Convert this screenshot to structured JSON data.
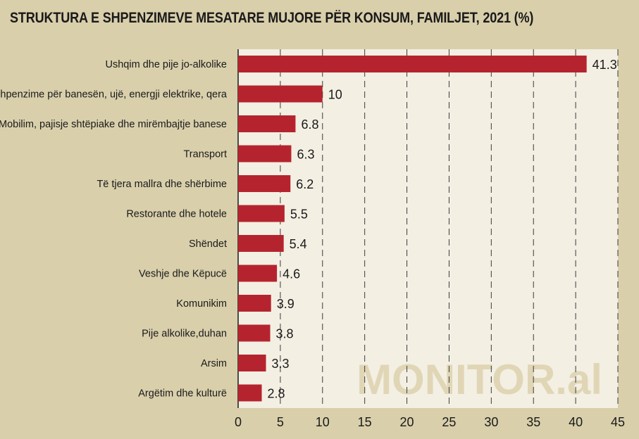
{
  "chart_data": {
    "type": "bar",
    "orientation": "horizontal",
    "title": "STRUKTURA E SHPENZIMEVE MESATARE MUJORE PËR KONSUM, FAMILJET, 2021 (%)",
    "categories": [
      "Ushqim dhe pije jo-alkolike",
      "Shpenzime për banesën, ujë, energji elektrike, qera",
      "Mobilim, pajisje shtëpiake dhe mirëmbajtje banese",
      "Transport",
      "Të tjera mallra dhe shërbime",
      "Restorante dhe hotele",
      "Shëndet",
      "Veshje dhe Këpucë",
      "Komunikim",
      "Pije alkolike,duhan",
      "Arsim",
      "Argëtim dhe kulturë"
    ],
    "values": [
      41.3,
      10,
      6.8,
      6.3,
      6.2,
      5.5,
      5.4,
      4.6,
      3.9,
      3.8,
      3.3,
      2.8
    ],
    "value_labels": [
      "41.3",
      "10",
      "6.8",
      "6.3",
      "6.2",
      "5.5",
      "5.4",
      "4.6",
      "3.9",
      "3.8",
      "3.3",
      "2.8"
    ],
    "xlim": [
      0,
      45
    ],
    "xticks": [
      0,
      5,
      10,
      15,
      20,
      25,
      30,
      35,
      40,
      45
    ],
    "grid": "vertical-dashed",
    "bar_color": "#b5242e",
    "plot_background": "#f3efe3",
    "page_background": "#d9cfab",
    "watermark": "MONITOR.al"
  }
}
